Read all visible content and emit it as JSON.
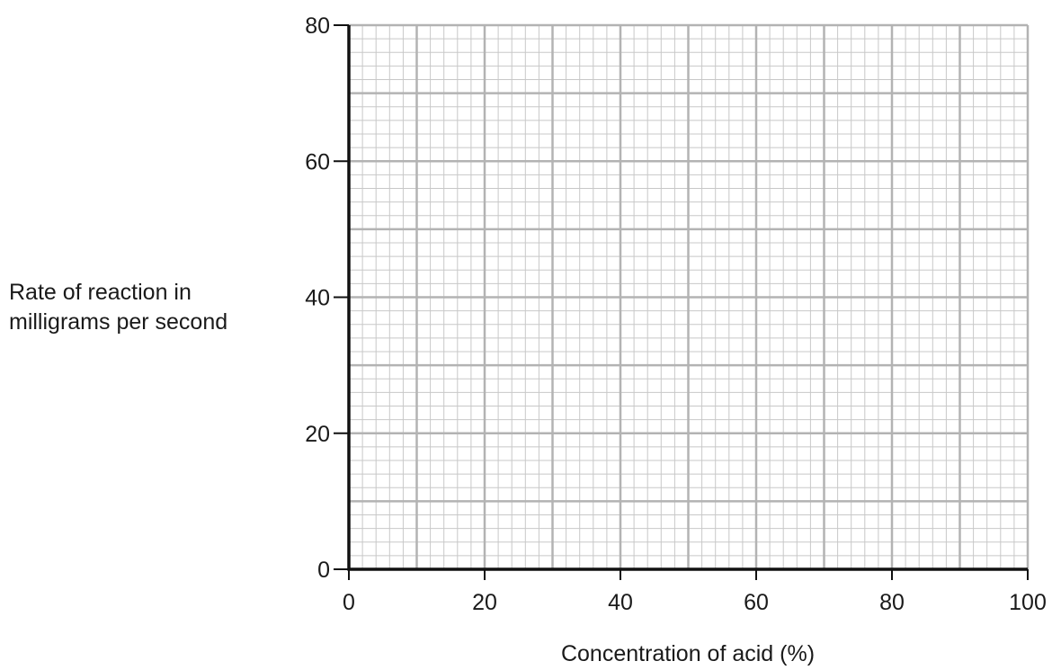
{
  "chart_data": {
    "type": "scatter",
    "title": "",
    "xlabel": "Concentration of acid (%)",
    "ylabel_lines": [
      "Rate of reaction in",
      "milligrams per second"
    ],
    "xlim": [
      0,
      100
    ],
    "ylim": [
      0,
      80
    ],
    "x_ticks": [
      0,
      20,
      40,
      60,
      80,
      100
    ],
    "y_ticks": [
      0,
      20,
      40,
      60,
      80
    ],
    "x_major_step": 10,
    "y_major_step": 10,
    "x_minor_step": 2,
    "y_minor_step": 2,
    "grid": true,
    "series": [],
    "colors": {
      "axis": "#111111",
      "grid_major": "#b3b3b3",
      "grid_minor": "#c8c8c8",
      "text": "#1a1a1a"
    }
  }
}
